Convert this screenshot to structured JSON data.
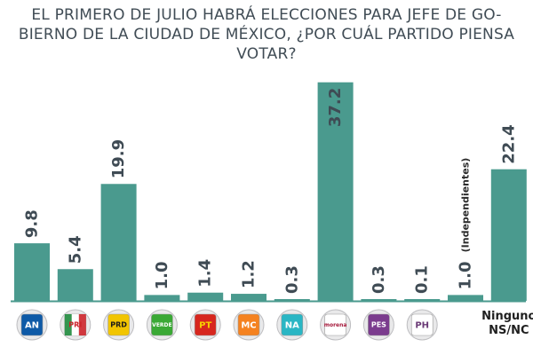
{
  "chart_data": {
    "type": "bar",
    "title": "EL PRIMERO DE JULIO HABRÁ ELECCIONES PARA JEFE DE GOBIERNO DE LA CIUDAD DE MÉXICO, ¿POR CUÁL PARTIDO PIENSA VOTAR?",
    "title_lines": [
      "EL PRIMERO DE JULIO HABRÁ ELECCIONES PARA JEFE DE GO-",
      "BIERNO DE LA CIUDAD DE MÉXICO, ¿POR CUÁL PARTIDO PIENSA",
      "VOTAR?"
    ],
    "categories": [
      "PAN",
      "PRI",
      "PRD",
      "PVEM",
      "PT",
      "MC",
      "NA",
      "MORENA",
      "PES",
      "PH",
      "Independientes",
      "Ninguno NS/NC"
    ],
    "values": [
      9.8,
      5.4,
      19.9,
      1.0,
      1.4,
      1.2,
      0.3,
      37.2,
      0.3,
      0.1,
      1.0,
      22.4
    ],
    "value_labels": [
      "9.8",
      "5.4",
      "19.9",
      "1.0",
      "1.4",
      "1.2",
      "0.3",
      "37.2",
      "0.3",
      "0.1",
      "1.0",
      "22.4"
    ],
    "annotations": [
      {
        "category_index": 10,
        "text": "(Independientes)"
      }
    ],
    "bottom_text": [
      {
        "category_index": 11,
        "lines": [
          "Ninguno",
          "NS/NC"
        ]
      }
    ],
    "xlabel": "",
    "ylabel": "",
    "ylim": [
      0,
      40
    ],
    "grid": false,
    "legend": "none",
    "bar_color": "#4a9a8e",
    "baseline_color": "#4a9a8e",
    "value_label_color": "#3f4b54"
  },
  "party_icons": [
    {
      "name": "pan-logo-icon",
      "text": "AN",
      "bg": "#0e5aa7",
      "fg": "#ffffff"
    },
    {
      "name": "pri-logo-icon",
      "text": "PRI",
      "bg": "#ffffff",
      "fg": "#cc2229",
      "stripes": [
        "#1e8a3c",
        "#ffffff",
        "#cc2229"
      ]
    },
    {
      "name": "prd-logo-icon",
      "text": "PRD",
      "bg": "#f2c500",
      "fg": "#1a1a1a"
    },
    {
      "name": "pvem-logo-icon",
      "text": "VERDE",
      "bg": "#3aa935",
      "fg": "#ffffff"
    },
    {
      "name": "pt-logo-icon",
      "text": "PT",
      "bg": "#d7261e",
      "fg": "#f7d000"
    },
    {
      "name": "mc-logo-icon",
      "text": "MC",
      "bg": "#f58220",
      "fg": "#ffffff"
    },
    {
      "name": "na-logo-icon",
      "text": "NA",
      "bg": "#2ab6c4",
      "fg": "#ffffff"
    },
    {
      "name": "morena-logo-icon",
      "text": "morena",
      "bg": "#ffffff",
      "fg": "#a5193b"
    },
    {
      "name": "pes-logo-icon",
      "text": "PES",
      "bg": "#7b3c8e",
      "fg": "#ffffff"
    },
    {
      "name": "ph-logo-icon",
      "text": "PH",
      "bg": "#ffffff",
      "fg": "#6a3a76"
    }
  ]
}
